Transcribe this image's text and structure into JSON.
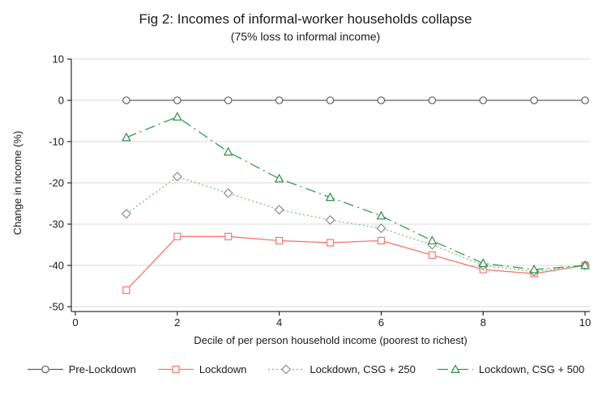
{
  "figure": {
    "title": "Fig 2: Incomes of informal-worker households collapse",
    "subtitle": "(75% loss to informal income)"
  },
  "chart_data": {
    "type": "line",
    "x": [
      1,
      2,
      3,
      4,
      5,
      6,
      7,
      8,
      9,
      10
    ],
    "xticks": [
      0,
      2,
      4,
      6,
      8,
      10
    ],
    "yticks": [
      10,
      0,
      -10,
      -20,
      -30,
      -40,
      -50
    ],
    "xlim": [
      0,
      10
    ],
    "ylim": [
      -50,
      10
    ],
    "xlabel": "Decile of per person household income (poorest to richest)",
    "ylabel": "Change in income (%)",
    "grid": "horizontal",
    "grid_color": "#d9d9d9",
    "axis_color": "#000000",
    "text_color": "#1a1a1a",
    "legend_position": "bottom",
    "series": [
      {
        "name": "Pre-Lockdown",
        "marker": "circle",
        "dash": "solid",
        "color": "#606060",
        "marker_color": "#606060",
        "values": [
          0,
          0,
          0,
          0,
          0,
          0,
          0,
          0,
          0,
          0
        ]
      },
      {
        "name": "Lockdown",
        "marker": "square",
        "dash": "solid",
        "color": "#f8766d",
        "marker_color": "#f8766d",
        "values": [
          -46,
          -33,
          -33,
          -34,
          -34.5,
          -34,
          -37.5,
          -41,
          -42,
          -40
        ]
      },
      {
        "name": "Lockdown, CSG + 250",
        "marker": "diamond",
        "dash": "dotted",
        "color": "#7fbf7f",
        "marker_color": "#8c8c8c",
        "values": [
          -27.5,
          -18.5,
          -22.5,
          -26.5,
          -29,
          -31,
          -35,
          -40,
          -41.5,
          -40
        ]
      },
      {
        "name": "Lockdown, CSG + 500",
        "marker": "triangle",
        "dash": "dashdot",
        "color": "#2e9e4f",
        "marker_color": "#2e8b44",
        "values": [
          -9,
          -4,
          -12.5,
          -19,
          -23.5,
          -28,
          -34,
          -39.5,
          -41,
          -40
        ]
      }
    ]
  }
}
